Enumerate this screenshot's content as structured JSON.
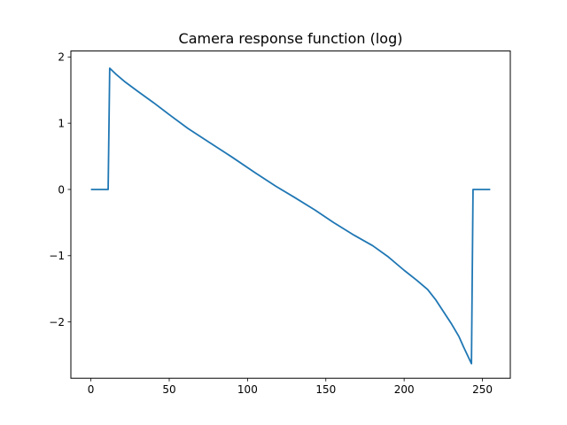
{
  "chart_data": {
    "type": "line",
    "title": "Camera response function (log)",
    "xlabel": "",
    "ylabel": "",
    "xlim": [
      -12.8,
      267.8
    ],
    "ylim": [
      -2.85,
      2.09
    ],
    "xticks": [
      0,
      50,
      100,
      150,
      200,
      250
    ],
    "yticks": [
      -2,
      -1,
      0,
      1,
      2
    ],
    "xtick_labels": [
      "0",
      "50",
      "100",
      "150",
      "200",
      "250"
    ],
    "ytick_labels": [
      "−2",
      "−1",
      "0",
      "1",
      "2"
    ],
    "grid": false,
    "legend": "none",
    "series": [
      {
        "color": "#1f77b4",
        "x": [
          0,
          11,
          12,
          16,
          22,
          30,
          40,
          50,
          62,
          75,
          90,
          105,
          118,
          130,
          143,
          155,
          168,
          180,
          190,
          200,
          208,
          215,
          220,
          225,
          230,
          235,
          238,
          241,
          243,
          244,
          250,
          255
        ],
        "y": [
          0,
          0,
          1.83,
          1.74,
          1.62,
          1.48,
          1.31,
          1.13,
          0.92,
          0.72,
          0.49,
          0.25,
          0.05,
          -0.12,
          -0.31,
          -0.5,
          -0.69,
          -0.85,
          -1.02,
          -1.22,
          -1.37,
          -1.51,
          -1.66,
          -1.84,
          -2.02,
          -2.22,
          -2.38,
          -2.53,
          -2.63,
          0,
          0,
          0
        ]
      }
    ]
  }
}
